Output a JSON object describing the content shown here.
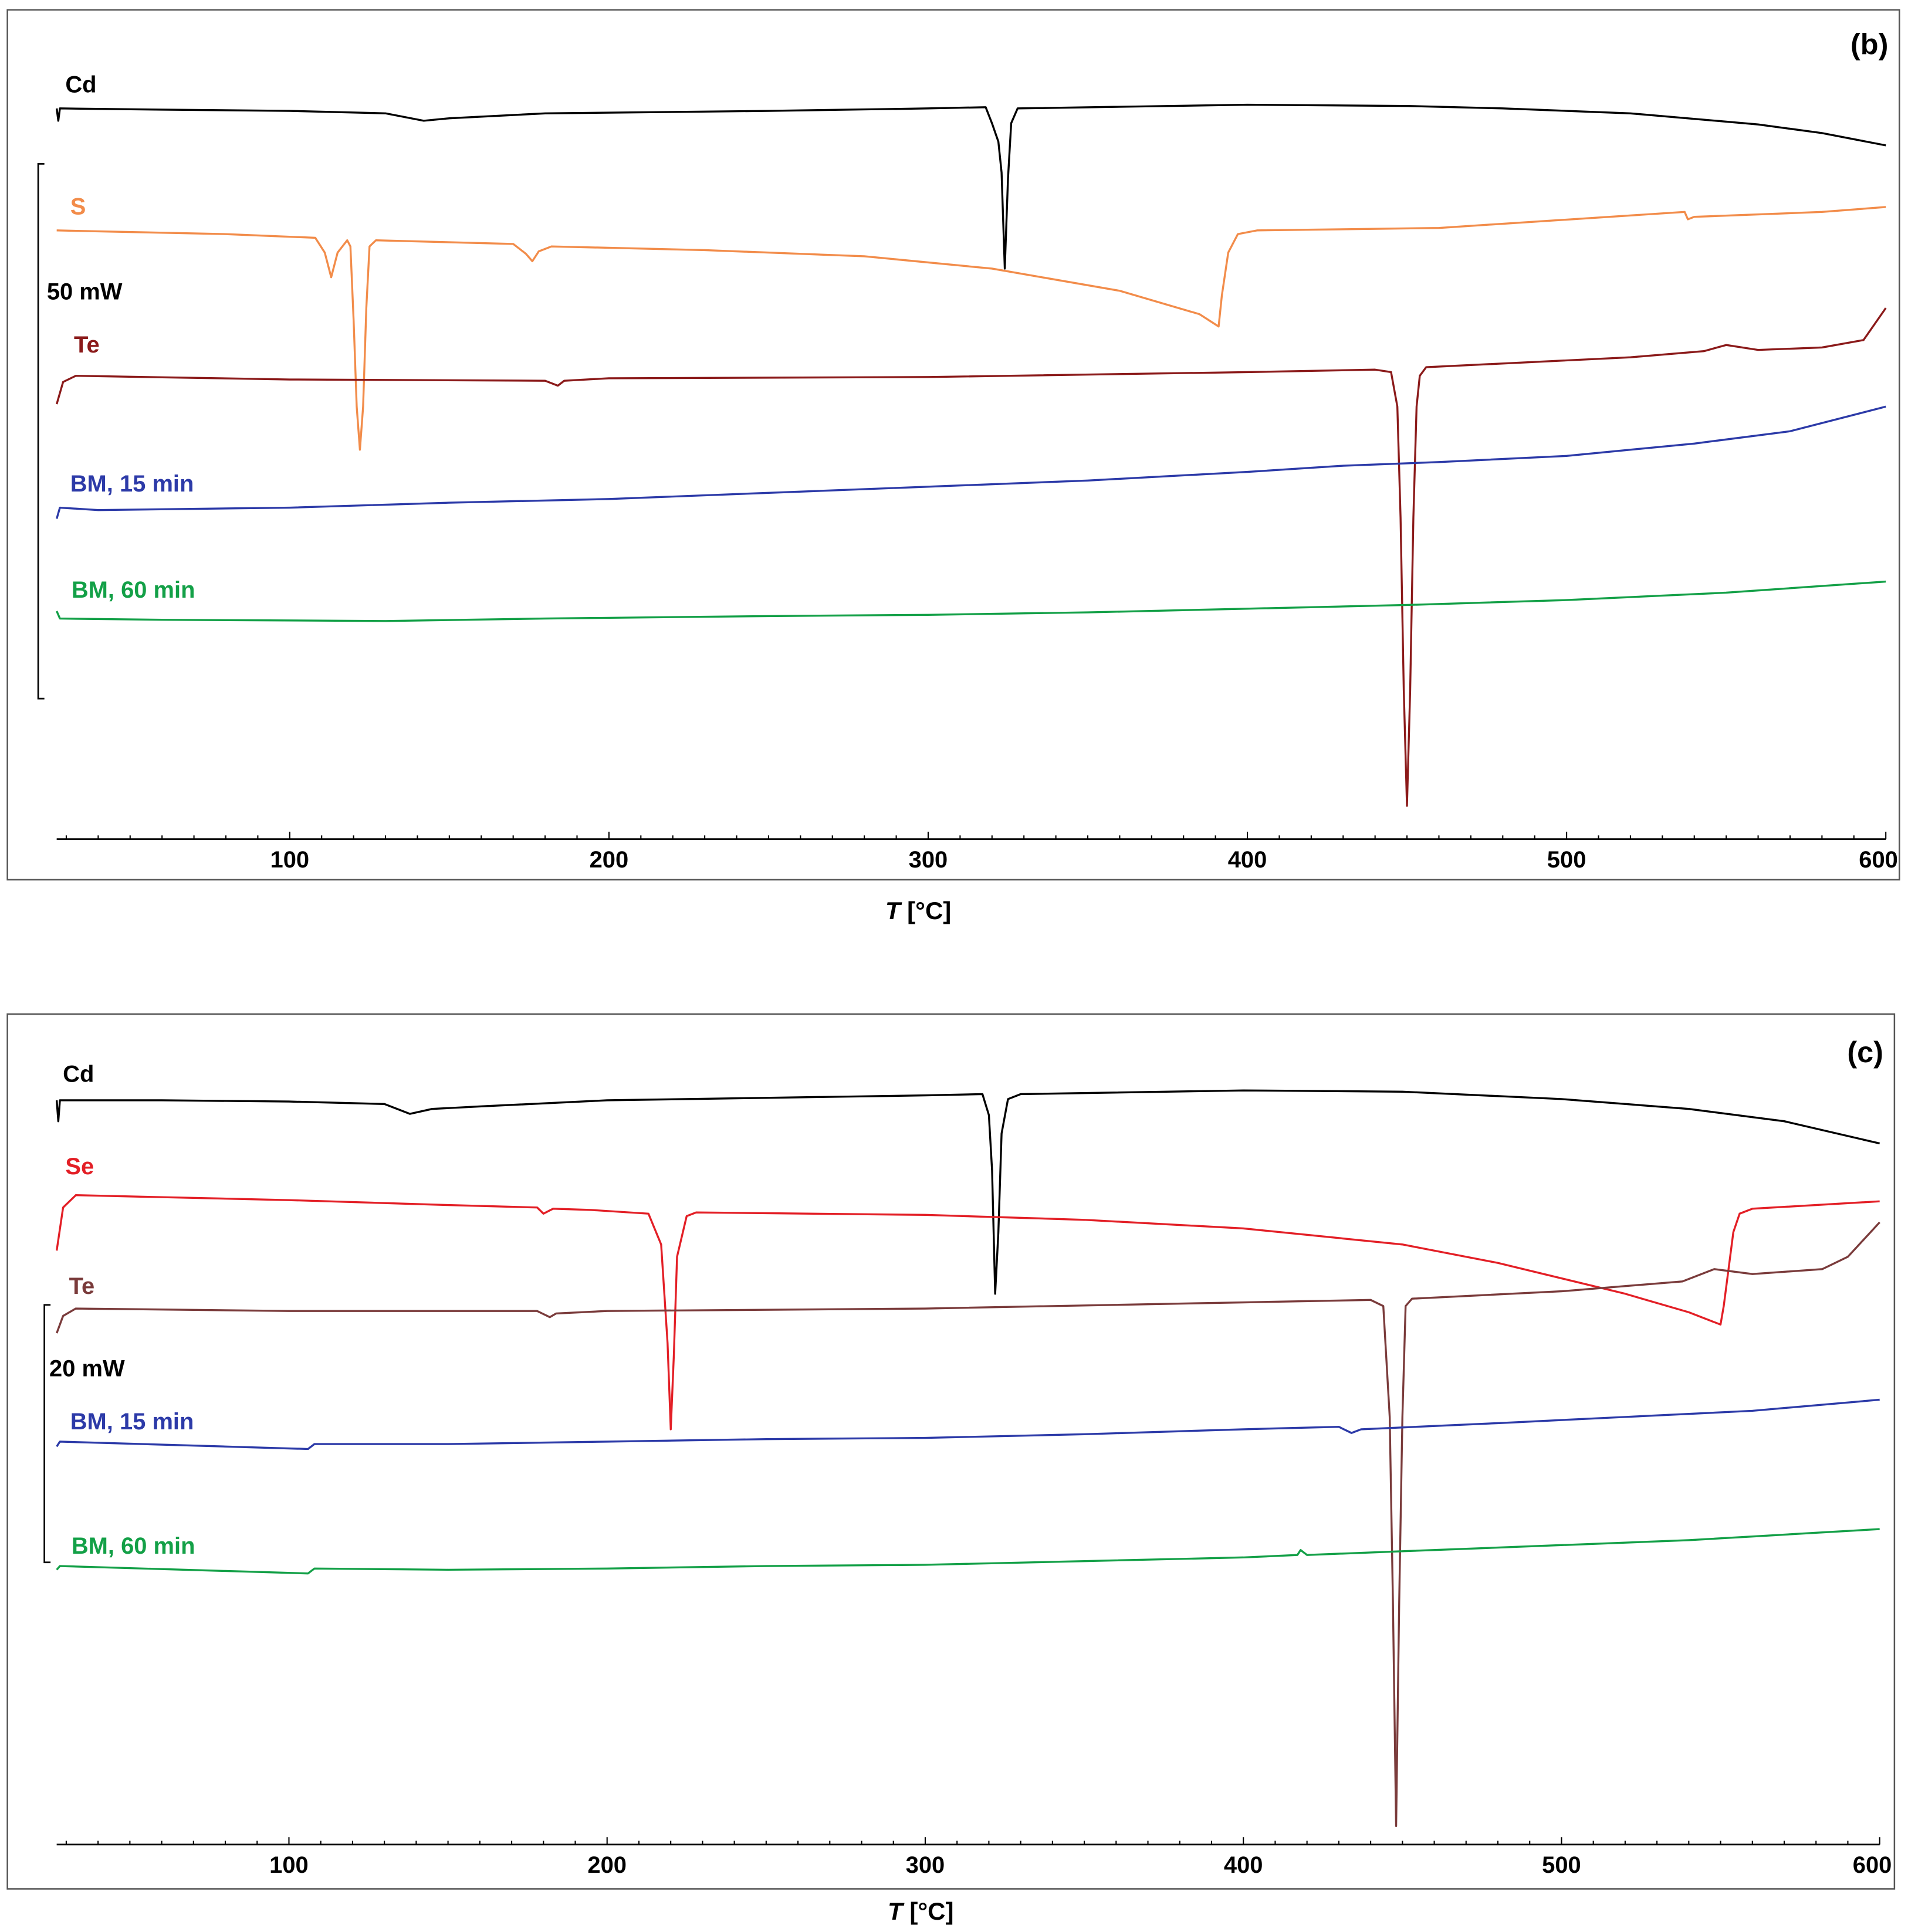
{
  "chart_data": [
    {
      "type": "line",
      "panel_label": "(b)",
      "xlabel_italic": "T",
      "xlabel_unit": " [°C]",
      "xlim": [
        27,
        600
      ],
      "xticks": [
        100,
        200,
        300,
        400,
        500,
        600
      ],
      "xtick_labels": [
        "100",
        "200",
        "300",
        "400",
        "500",
        "600"
      ],
      "scale_bar_label": "50 mW",
      "grid": false,
      "series": [
        {
          "name": "Cd",
          "color": "#000000",
          "points": [
            [
              27,
              88
            ],
            [
              27.5,
              98
            ],
            [
              28,
              88
            ],
            [
              60,
              89
            ],
            [
              100,
              90
            ],
            [
              130,
              92
            ],
            [
              142,
              98
            ],
            [
              150,
              96
            ],
            [
              180,
              92
            ],
            [
              250,
              90
            ],
            [
              300,
              88
            ],
            [
              318,
              87
            ],
            [
              320,
              100
            ],
            [
              322,
              115
            ],
            [
              323,
              140
            ],
            [
              324,
              218
            ],
            [
              325,
              145
            ],
            [
              326,
              100
            ],
            [
              328,
              88
            ],
            [
              400,
              85
            ],
            [
              450,
              86
            ],
            [
              480,
              88
            ],
            [
              520,
              92
            ],
            [
              560,
              101
            ],
            [
              580,
              108
            ],
            [
              600,
              118
            ]
          ]
        },
        {
          "name": "S",
          "color": "#f28c4a",
          "points": [
            [
              27,
              187
            ],
            [
              80,
              190
            ],
            [
              108,
              193
            ],
            [
              111,
              205
            ],
            [
              113,
              225
            ],
            [
              115,
              205
            ],
            [
              118,
              195
            ],
            [
              119,
              200
            ],
            [
              120,
              260
            ],
            [
              121,
              330
            ],
            [
              122,
              365
            ],
            [
              123,
              330
            ],
            [
              124,
              250
            ],
            [
              125,
              200
            ],
            [
              127,
              195
            ],
            [
              170,
              198
            ],
            [
              174,
              206
            ],
            [
              176,
              212
            ],
            [
              178,
              204
            ],
            [
              182,
              200
            ],
            [
              230,
              203
            ],
            [
              280,
              208
            ],
            [
              320,
              218
            ],
            [
              360,
              236
            ],
            [
              385,
              255
            ],
            [
              391,
              265
            ],
            [
              392,
              240
            ],
            [
              394,
              205
            ],
            [
              397,
              190
            ],
            [
              403,
              187
            ],
            [
              460,
              185
            ],
            [
              537,
              172
            ],
            [
              538,
              178
            ],
            [
              540,
              176
            ],
            [
              580,
              172
            ],
            [
              600,
              168
            ]
          ]
        },
        {
          "name": "Te",
          "color": "#8b1a1a",
          "points": [
            [
              27,
              328
            ],
            [
              29,
              310
            ],
            [
              33,
              305
            ],
            [
              100,
              308
            ],
            [
              180,
              309
            ],
            [
              184,
              313
            ],
            [
              186,
              309
            ],
            [
              200,
              307
            ],
            [
              300,
              306
            ],
            [
              400,
              302
            ],
            [
              440,
              300
            ],
            [
              445,
              302
            ],
            [
              447,
              330
            ],
            [
              448,
              420
            ],
            [
              449,
              560
            ],
            [
              450,
              654
            ],
            [
              451,
              560
            ],
            [
              452,
              420
            ],
            [
              453,
              330
            ],
            [
              454,
              305
            ],
            [
              456,
              298
            ],
            [
              520,
              290
            ],
            [
              543,
              285
            ],
            [
              550,
              280
            ],
            [
              560,
              284
            ],
            [
              580,
              282
            ],
            [
              593,
              276
            ],
            [
              600,
              250
            ]
          ]
        },
        {
          "name": "BM, 15 min",
          "color": "#2c3aa8",
          "points": [
            [
              27,
              421
            ],
            [
              28,
              412
            ],
            [
              40,
              414
            ],
            [
              100,
              412
            ],
            [
              150,
              408
            ],
            [
              200,
              405
            ],
            [
              250,
              400
            ],
            [
              300,
              395
            ],
            [
              350,
              390
            ],
            [
              400,
              383
            ],
            [
              430,
              378
            ],
            [
              460,
              375
            ],
            [
              500,
              370
            ],
            [
              540,
              360
            ],
            [
              570,
              350
            ],
            [
              600,
              330
            ]
          ]
        },
        {
          "name": "BM, 60 min",
          "color": "#13a047",
          "points": [
            [
              27,
              496
            ],
            [
              28,
              502
            ],
            [
              60,
              503
            ],
            [
              130,
              504
            ],
            [
              180,
              502
            ],
            [
              250,
              500
            ],
            [
              300,
              499
            ],
            [
              350,
              497
            ],
            [
              400,
              494
            ],
            [
              450,
              491
            ],
            [
              500,
              487
            ],
            [
              550,
              481
            ],
            [
              600,
              472
            ]
          ]
        }
      ]
    },
    {
      "type": "line",
      "panel_label": "(c)",
      "xlabel_italic": "T",
      "xlabel_unit": " [°C]",
      "xlim": [
        27,
        600
      ],
      "xticks": [
        100,
        200,
        300,
        400,
        500,
        600
      ],
      "xtick_labels": [
        "100",
        "200",
        "300",
        "400",
        "500",
        "600"
      ],
      "scale_bar_label": "20 mW",
      "grid": false,
      "series": [
        {
          "name": "Cd",
          "color": "#000000",
          "points": [
            [
              27,
              893
            ],
            [
              27.5,
              910
            ],
            [
              28,
              893
            ],
            [
              60,
              893
            ],
            [
              100,
              894
            ],
            [
              130,
              896
            ],
            [
              138,
              904
            ],
            [
              145,
              900
            ],
            [
              160,
              898
            ],
            [
              200,
              893
            ],
            [
              250,
              891
            ],
            [
              300,
              889
            ],
            [
              318,
              888
            ],
            [
              320,
              905
            ],
            [
              321,
              950
            ],
            [
              322,
              1050
            ],
            [
              323,
              1000
            ],
            [
              324,
              920
            ],
            [
              326,
              892
            ],
            [
              330,
              888
            ],
            [
              400,
              885
            ],
            [
              450,
              886
            ],
            [
              500,
              892
            ],
            [
              540,
              900
            ],
            [
              570,
              910
            ],
            [
              600,
              928
            ]
          ]
        },
        {
          "name": "Se",
          "color": "#e31f26",
          "points": [
            [
              27,
              1015
            ],
            [
              29,
              980
            ],
            [
              33,
              970
            ],
            [
              100,
              974
            ],
            [
              150,
              978
            ],
            [
              178,
              980
            ],
            [
              180,
              985
            ],
            [
              183,
              981
            ],
            [
              195,
              982
            ],
            [
              213,
              985
            ],
            [
              217,
              1010
            ],
            [
              219,
              1090
            ],
            [
              220,
              1160
            ],
            [
              221,
              1100
            ],
            [
              222,
              1020
            ],
            [
              225,
              987
            ],
            [
              228,
              984
            ],
            [
              300,
              986
            ],
            [
              350,
              990
            ],
            [
              400,
              997
            ],
            [
              450,
              1010
            ],
            [
              480,
              1025
            ],
            [
              520,
              1050
            ],
            [
              540,
              1065
            ],
            [
              550,
              1075
            ],
            [
              551,
              1060
            ],
            [
              552,
              1040
            ],
            [
              554,
              1000
            ],
            [
              556,
              985
            ],
            [
              560,
              981
            ],
            [
              600,
              975
            ]
          ]
        },
        {
          "name": "Te",
          "color": "#7a3b3b",
          "points": [
            [
              27,
              1082
            ],
            [
              29,
              1068
            ],
            [
              33,
              1062
            ],
            [
              100,
              1064
            ],
            [
              178,
              1064
            ],
            [
              182,
              1069
            ],
            [
              184,
              1066
            ],
            [
              200,
              1064
            ],
            [
              300,
              1062
            ],
            [
              400,
              1057
            ],
            [
              440,
              1055
            ],
            [
              444,
              1060
            ],
            [
              446,
              1150
            ],
            [
              447,
              1300
            ],
            [
              448,
              1482
            ],
            [
              449,
              1300
            ],
            [
              450,
              1150
            ],
            [
              451,
              1060
            ],
            [
              453,
              1054
            ],
            [
              500,
              1048
            ],
            [
              538,
              1040
            ],
            [
              548,
              1030
            ],
            [
              560,
              1034
            ],
            [
              582,
              1030
            ],
            [
              590,
              1020
            ],
            [
              600,
              992
            ]
          ]
        },
        {
          "name": "BM, 15 min",
          "color": "#2c3aa8",
          "points": [
            [
              27,
              1174
            ],
            [
              28,
              1170
            ],
            [
              80,
              1174
            ],
            [
              106,
              1176
            ],
            [
              108,
              1172
            ],
            [
              150,
              1172
            ],
            [
              200,
              1170
            ],
            [
              250,
              1168
            ],
            [
              300,
              1167
            ],
            [
              350,
              1164
            ],
            [
              400,
              1160
            ],
            [
              430,
              1158
            ],
            [
              434,
              1163
            ],
            [
              437,
              1160
            ],
            [
              480,
              1155
            ],
            [
              520,
              1150
            ],
            [
              560,
              1145
            ],
            [
              600,
              1136
            ]
          ]
        },
        {
          "name": "BM, 60 min",
          "color": "#13a047",
          "points": [
            [
              27,
              1274
            ],
            [
              28,
              1271
            ],
            [
              80,
              1275
            ],
            [
              106,
              1277
            ],
            [
              108,
              1273
            ],
            [
              150,
              1274
            ],
            [
              200,
              1273
            ],
            [
              250,
              1271
            ],
            [
              300,
              1270
            ],
            [
              350,
              1267
            ],
            [
              400,
              1264
            ],
            [
              417,
              1262
            ],
            [
              418,
              1258
            ],
            [
              420,
              1262
            ],
            [
              450,
              1259
            ],
            [
              500,
              1254
            ],
            [
              540,
              1250
            ],
            [
              560,
              1247
            ],
            [
              580,
              1244
            ],
            [
              600,
              1241
            ]
          ]
        }
      ]
    }
  ]
}
